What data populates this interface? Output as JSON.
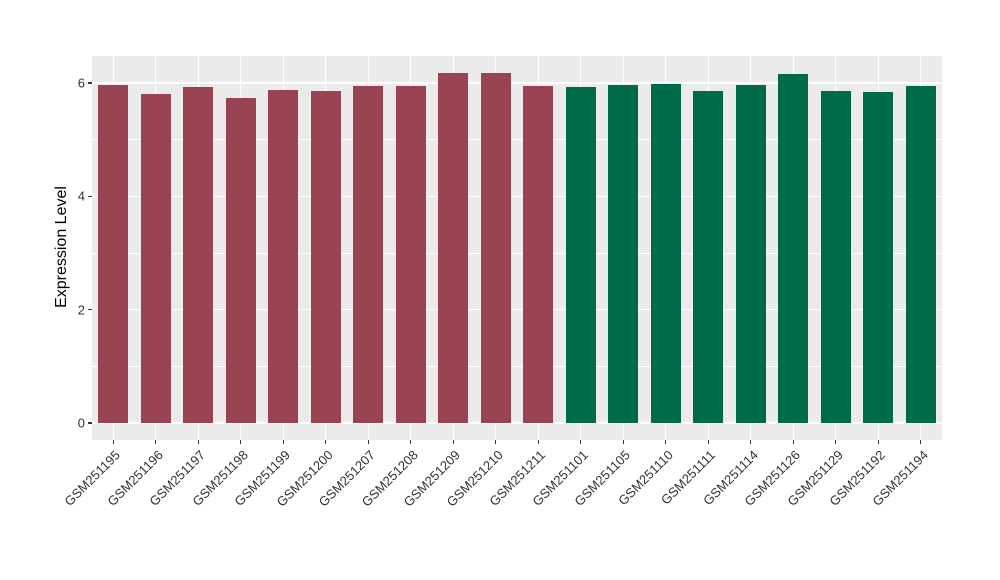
{
  "figure": {
    "background": "#FFFFFF",
    "panel_background": "#EBEBEB",
    "grid_color": "#FFFFFF",
    "tick_mark_color": "#333333",
    "axis_text_color": "#333333",
    "axis_title_color": "#000000"
  },
  "chart_data": {
    "type": "bar",
    "title": "",
    "xlabel": "",
    "ylabel": "Expression Level",
    "ylim": [
      -0.26,
      6.48
    ],
    "yticks": [
      0,
      2,
      4,
      6
    ],
    "yminorticks": [
      1,
      3,
      5
    ],
    "grid": "on",
    "legend": "none",
    "x_tick_rotation": 45,
    "categories": [
      "GSM251195",
      "GSM251196",
      "GSM251197",
      "GSM251198",
      "GSM251199",
      "GSM251200",
      "GSM251207",
      "GSM251208",
      "GSM251209",
      "GSM251210",
      "GSM251211",
      "GSM251101",
      "GSM251105",
      "GSM251110",
      "GSM251111",
      "GSM251114",
      "GSM251126",
      "GSM251129",
      "GSM251192",
      "GSM251194"
    ],
    "values": [
      5.96,
      5.81,
      5.93,
      5.74,
      5.88,
      5.86,
      5.95,
      5.95,
      6.17,
      6.17,
      5.94,
      5.93,
      5.97,
      5.98,
      5.85,
      5.97,
      6.16,
      5.86,
      5.84,
      5.94
    ],
    "groups": [
      "group1",
      "group1",
      "group1",
      "group1",
      "group1",
      "group1",
      "group1",
      "group1",
      "group1",
      "group1",
      "group1",
      "group2",
      "group2",
      "group2",
      "group2",
      "group2",
      "group2",
      "group2",
      "group2",
      "group2"
    ],
    "group_colors": {
      "group1": "#9A4352",
      "group2": "#006B4A"
    }
  }
}
